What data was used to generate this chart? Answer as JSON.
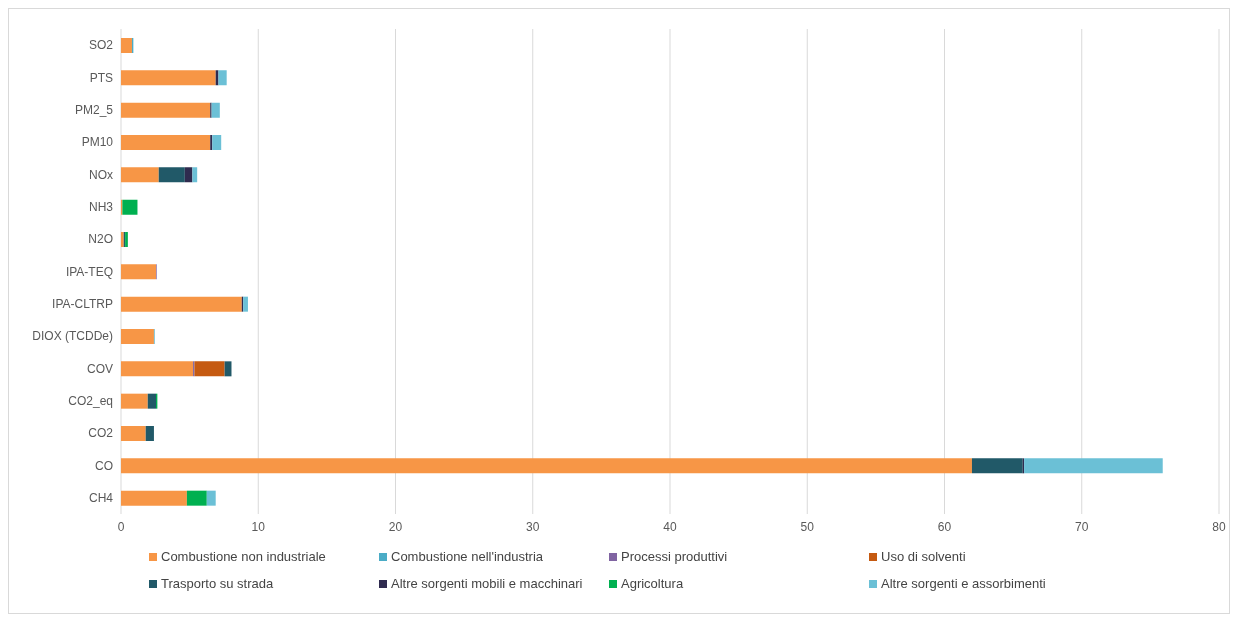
{
  "chart_data": {
    "type": "bar",
    "orientation": "horizontal",
    "stacked": true,
    "categories": [
      "SO2",
      "PTS",
      "PM2_5",
      "PM10",
      "NOx",
      "NH3",
      "N2O",
      "IPA-TEQ",
      "IPA-CLTRP",
      "DIOX (TCDDe)",
      "COV",
      "CO2_eq",
      "CO2",
      "CO",
      "CH4"
    ],
    "series": [
      {
        "name": "Combustione non industriale",
        "color": "#f79646",
        "values": [
          0.8,
          6.9,
          6.5,
          6.5,
          2.75,
          0.1,
          0.2,
          2.55,
          8.8,
          2.4,
          5.25,
          1.95,
          1.8,
          62.0,
          4.8
        ]
      },
      {
        "name": "Combustione nell'industria",
        "color": "#4bacc6",
        "values": [
          0.1,
          null,
          null,
          null,
          null,
          null,
          null,
          null,
          null,
          0.05,
          null,
          null,
          null,
          null,
          null
        ]
      },
      {
        "name": "Processi produttivi",
        "color": "#8064a2",
        "values": [
          null,
          null,
          null,
          null,
          null,
          null,
          null,
          0.05,
          null,
          null,
          0.1,
          null,
          null,
          null,
          null
        ]
      },
      {
        "name": "Uso di solventi",
        "color": "#c55a11",
        "values": [
          null,
          null,
          null,
          null,
          null,
          null,
          null,
          null,
          null,
          null,
          2.2,
          null,
          null,
          null,
          null
        ]
      },
      {
        "name": "Trasporto su strada",
        "color": "#215968",
        "values": [
          null,
          null,
          null,
          null,
          1.9,
          null,
          0.1,
          null,
          null,
          null,
          0.5,
          0.6,
          0.6,
          3.7,
          null
        ]
      },
      {
        "name": "Altre sorgenti mobili e macchinari",
        "color": "#2f2b4f",
        "values": [
          null,
          0.2,
          0.1,
          0.15,
          0.55,
          null,
          null,
          null,
          0.1,
          null,
          null,
          null,
          null,
          0.1,
          null
        ]
      },
      {
        "name": "Agricoltura",
        "color": "#00b050",
        "values": [
          null,
          null,
          null,
          null,
          null,
          1.1,
          0.2,
          null,
          null,
          null,
          null,
          0.1,
          null,
          null,
          1.45
        ]
      },
      {
        "name": "Altre sorgenti e assorbimenti",
        "color": "#6bc0d6",
        "values": [
          null,
          0.6,
          0.6,
          0.65,
          0.35,
          null,
          null,
          null,
          0.35,
          null,
          null,
          null,
          null,
          10.1,
          0.65
        ]
      }
    ],
    "xlim": [
      0,
      80
    ],
    "xticks": [
      0,
      10,
      20,
      30,
      40,
      50,
      60,
      70,
      80
    ],
    "grid": "x",
    "legend": "bottom"
  }
}
